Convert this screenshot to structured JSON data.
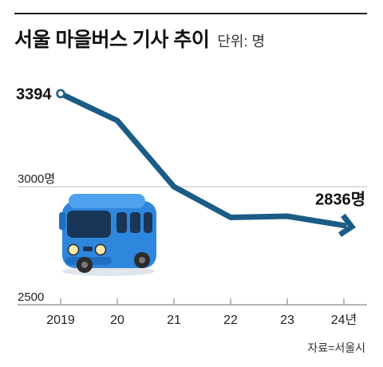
{
  "header": {
    "title": "서울 마을버스 기사 추이",
    "unit": "단위: 명"
  },
  "source": "자료=서울시",
  "icons": {
    "illustration": "bus-icon"
  },
  "colors": {
    "line": "#1b5c86",
    "bus": "#2f86dd",
    "axis": "#8a8a8a"
  },
  "chart_data": {
    "type": "line",
    "title": "서울 마을버스 기사 추이",
    "unit": "단위: 명",
    "categories": [
      "2019",
      "20",
      "21",
      "22",
      "23",
      "24년"
    ],
    "series": [
      {
        "values": [
          3394,
          3280,
          3000,
          2870,
          2875,
          2836
        ]
      }
    ],
    "y_tick_labels": [
      "2500",
      "3000명"
    ],
    "y_ticks": [
      2500,
      3000
    ],
    "ylim": [
      2500,
      3500
    ],
    "data_labels": [
      {
        "index": 0,
        "text": "3394"
      },
      {
        "index": 5,
        "text": "2836명"
      }
    ],
    "grid": true,
    "legend": "none"
  }
}
